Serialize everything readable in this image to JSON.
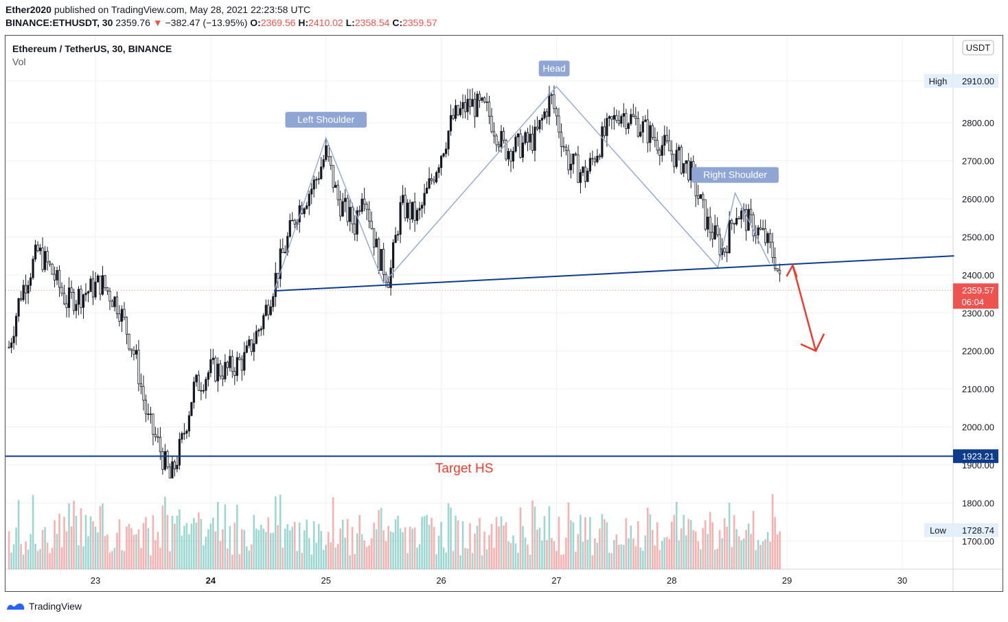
{
  "header": {
    "author": "Ether2020",
    "published": "published on TradingView.com, May 28, 2021 22:23:58 UTC"
  },
  "quote": {
    "symbol": "BINANCE:ETHUSDT, 30",
    "last": "2359.76",
    "arrow": "▼",
    "change": "−382.47 (−13.95%)",
    "o_label": "O:",
    "o": "2369.56",
    "h_label": "H:",
    "h": "2410.02",
    "l_label": "L:",
    "l": "2358.54",
    "c_label": "C:",
    "c": "2359.57"
  },
  "legend": {
    "title": "Ethereum / TetherUS, 30, BINANCE",
    "vol": "Vol"
  },
  "footer": {
    "brand": "TradingView"
  },
  "colors": {
    "up": "#26a69a",
    "down": "#ef5350",
    "pattern": "#8fa6d4",
    "neckline": "#0d3c8c",
    "target": "#ef3b2c"
  },
  "chart_data": {
    "type": "candlestick",
    "currency_label": "USDT",
    "ylim": [
      1620,
      3000
    ],
    "y_ticks": [
      1700,
      1800,
      1900,
      2000,
      2100,
      2200,
      2300,
      2400,
      2500,
      2600,
      2700,
      2800,
      2910
    ],
    "y_tick_labels": [
      "1700.00",
      "1800.00",
      "1900.00",
      "2000.00",
      "2100.00",
      "2200.00",
      "2300.00",
      "2400.00",
      "2500.00",
      "2600.00",
      "2700.00",
      "2800.00",
      "2910.00"
    ],
    "x_ticks": [
      "23",
      "24",
      "25",
      "26",
      "27",
      "28",
      "29",
      "30"
    ],
    "x_day_range": [
      22.25,
      30.45
    ],
    "high": {
      "label": "High",
      "value": "2910.00"
    },
    "low": {
      "label": "Low",
      "value": "1728.74"
    },
    "last_price": {
      "value": "2359.57",
      "timer": "06:04"
    },
    "target_level": {
      "value": "1923.21",
      "label": "Target HS"
    },
    "neckline": {
      "from": [
        24.55,
        2358
      ],
      "to": [
        30.45,
        2450
      ]
    },
    "pattern_points": [
      {
        "day": 24.55,
        "price": 2358
      },
      {
        "day": 25.0,
        "price": 2760
      },
      {
        "day": 25.5,
        "price": 2378
      },
      {
        "day": 27.0,
        "price": 2895
      },
      {
        "day": 28.4,
        "price": 2420
      },
      {
        "day": 28.55,
        "price": 2615
      },
      {
        "day": 28.85,
        "price": 2430
      }
    ],
    "annotations": [
      {
        "text": "Left Shoulder",
        "day": 25.0,
        "price": 2760
      },
      {
        "text": "Head",
        "day": 26.98,
        "price": 2895
      },
      {
        "text": "Right Shoulder",
        "day": 28.55,
        "price": 2615
      }
    ],
    "projection": [
      {
        "day": 29.05,
        "price": 2425
      },
      {
        "day": 29.25,
        "price": 2200
      }
    ],
    "candles_anchor_closes": [
      [
        22.25,
        2210
      ],
      [
        22.35,
        2350
      ],
      [
        22.5,
        2460
      ],
      [
        22.6,
        2420
      ],
      [
        22.75,
        2330
      ],
      [
        22.95,
        2360
      ],
      [
        23.05,
        2380
      ],
      [
        23.2,
        2320
      ],
      [
        23.35,
        2180
      ],
      [
        23.45,
        2020
      ],
      [
        23.55,
        1950
      ],
      [
        23.65,
        1860
      ],
      [
        23.75,
        1960
      ],
      [
        23.85,
        2100
      ],
      [
        24.0,
        2150
      ],
      [
        24.15,
        2150
      ],
      [
        24.3,
        2180
      ],
      [
        24.45,
        2280
      ],
      [
        24.6,
        2430
      ],
      [
        24.75,
        2570
      ],
      [
        24.9,
        2640
      ],
      [
        25.0,
        2720
      ],
      [
        25.1,
        2600
      ],
      [
        25.25,
        2530
      ],
      [
        25.32,
        2640
      ],
      [
        25.45,
        2450
      ],
      [
        25.55,
        2390
      ],
      [
        25.65,
        2580
      ],
      [
        25.8,
        2550
      ],
      [
        25.95,
        2680
      ],
      [
        26.1,
        2810
      ],
      [
        26.25,
        2850
      ],
      [
        26.4,
        2830
      ],
      [
        26.55,
        2730
      ],
      [
        26.7,
        2740
      ],
      [
        26.82,
        2760
      ],
      [
        26.95,
        2870
      ],
      [
        27.1,
        2700
      ],
      [
        27.25,
        2660
      ],
      [
        27.4,
        2760
      ],
      [
        27.55,
        2830
      ],
      [
        27.7,
        2800
      ],
      [
        27.85,
        2760
      ],
      [
        28.0,
        2720
      ],
      [
        28.15,
        2680
      ],
      [
        28.3,
        2540
      ],
      [
        28.45,
        2460
      ],
      [
        28.55,
        2570
      ],
      [
        28.7,
        2530
      ],
      [
        28.8,
        2500
      ],
      [
        28.9,
        2440
      ],
      [
        28.95,
        2360
      ]
    ]
  }
}
